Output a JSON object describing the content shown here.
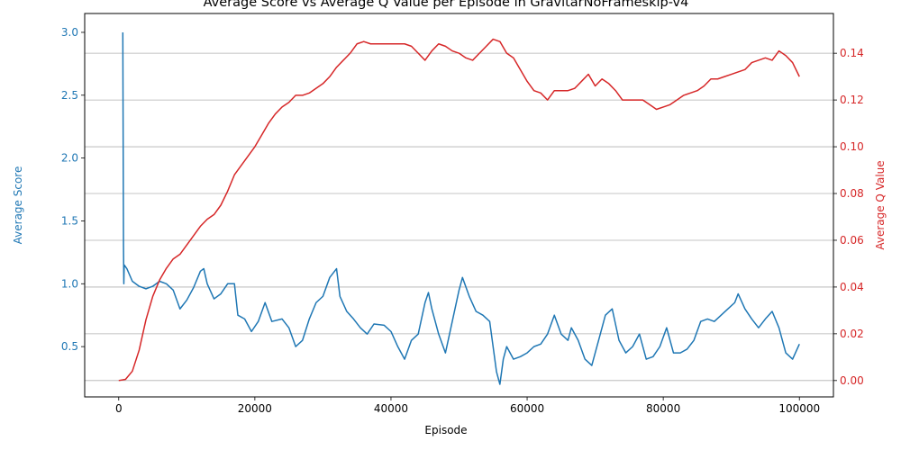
{
  "chart_data": {
    "type": "line",
    "title": "Average Score vs Average Q Value per Episode in GravitarNoFrameskip-v4",
    "xlabel": "Episode",
    "xlim": [
      -5000,
      105000
    ],
    "xticks": [
      0,
      20000,
      40000,
      60000,
      80000,
      100000
    ],
    "grid": "horizontal grid lines from right axis",
    "series": [
      {
        "name": "Average Score",
        "axis": "left",
        "ylabel": "Average Score",
        "color": "#1f77b4",
        "ylim": [
          0.1,
          3.15
        ],
        "yticks": [
          0.5,
          1.0,
          1.5,
          2.0,
          2.5,
          3.0
        ],
        "points": [
          [
            600,
            3.0
          ],
          [
            700,
            1.3
          ],
          [
            750,
            1.0
          ],
          [
            800,
            1.15
          ],
          [
            1200,
            1.12
          ],
          [
            2000,
            1.02
          ],
          [
            3000,
            0.98
          ],
          [
            4000,
            0.96
          ],
          [
            5000,
            0.98
          ],
          [
            6000,
            1.02
          ],
          [
            7000,
            1.0
          ],
          [
            8000,
            0.95
          ],
          [
            9000,
            0.8
          ],
          [
            10000,
            0.87
          ],
          [
            11000,
            0.97
          ],
          [
            12000,
            1.1
          ],
          [
            12500,
            1.12
          ],
          [
            13000,
            1.0
          ],
          [
            14000,
            0.88
          ],
          [
            15000,
            0.92
          ],
          [
            16000,
            1.0
          ],
          [
            17000,
            1.0
          ],
          [
            17500,
            0.75
          ],
          [
            18500,
            0.72
          ],
          [
            19500,
            0.62
          ],
          [
            20500,
            0.7
          ],
          [
            21500,
            0.85
          ],
          [
            22500,
            0.7
          ],
          [
            24000,
            0.72
          ],
          [
            25000,
            0.65
          ],
          [
            26000,
            0.5
          ],
          [
            27000,
            0.55
          ],
          [
            28000,
            0.72
          ],
          [
            29000,
            0.85
          ],
          [
            30000,
            0.9
          ],
          [
            31000,
            1.05
          ],
          [
            32000,
            1.12
          ],
          [
            32500,
            0.9
          ],
          [
            33500,
            0.78
          ],
          [
            34500,
            0.72
          ],
          [
            35500,
            0.65
          ],
          [
            36500,
            0.6
          ],
          [
            37500,
            0.68
          ],
          [
            39000,
            0.67
          ],
          [
            40000,
            0.62
          ],
          [
            41000,
            0.5
          ],
          [
            42000,
            0.4
          ],
          [
            43000,
            0.55
          ],
          [
            44000,
            0.6
          ],
          [
            45000,
            0.85
          ],
          [
            45500,
            0.93
          ],
          [
            46000,
            0.8
          ],
          [
            47000,
            0.6
          ],
          [
            48000,
            0.45
          ],
          [
            49000,
            0.7
          ],
          [
            50000,
            0.95
          ],
          [
            50500,
            1.05
          ],
          [
            51500,
            0.9
          ],
          [
            52500,
            0.78
          ],
          [
            53500,
            0.75
          ],
          [
            54500,
            0.7
          ],
          [
            55500,
            0.3
          ],
          [
            56000,
            0.2
          ],
          [
            56500,
            0.4
          ],
          [
            57000,
            0.5
          ],
          [
            58000,
            0.4
          ],
          [
            59000,
            0.42
          ],
          [
            60000,
            0.45
          ],
          [
            61000,
            0.5
          ],
          [
            62000,
            0.52
          ],
          [
            63000,
            0.6
          ],
          [
            64000,
            0.75
          ],
          [
            65000,
            0.6
          ],
          [
            66000,
            0.55
          ],
          [
            66500,
            0.65
          ],
          [
            67500,
            0.55
          ],
          [
            68500,
            0.4
          ],
          [
            69500,
            0.35
          ],
          [
            70500,
            0.55
          ],
          [
            71500,
            0.75
          ],
          [
            72500,
            0.8
          ],
          [
            73500,
            0.55
          ],
          [
            74500,
            0.45
          ],
          [
            75500,
            0.5
          ],
          [
            76500,
            0.6
          ],
          [
            77500,
            0.4
          ],
          [
            78500,
            0.42
          ],
          [
            79500,
            0.5
          ],
          [
            80500,
            0.65
          ],
          [
            81500,
            0.45
          ],
          [
            82500,
            0.45
          ],
          [
            83500,
            0.48
          ],
          [
            84500,
            0.55
          ],
          [
            85500,
            0.7
          ],
          [
            86500,
            0.72
          ],
          [
            87500,
            0.7
          ],
          [
            88500,
            0.75
          ],
          [
            89500,
            0.8
          ],
          [
            90500,
            0.85
          ],
          [
            91000,
            0.92
          ],
          [
            92000,
            0.8
          ],
          [
            93000,
            0.72
          ],
          [
            94000,
            0.65
          ],
          [
            95000,
            0.72
          ],
          [
            96000,
            0.78
          ],
          [
            97000,
            0.65
          ],
          [
            98000,
            0.45
          ],
          [
            99000,
            0.4
          ],
          [
            100000,
            0.52
          ]
        ]
      },
      {
        "name": "Average Q Value",
        "axis": "right",
        "ylabel": "Average Q Value",
        "color": "#d62728",
        "ylim": [
          -0.007,
          0.157
        ],
        "yticks": [
          0.0,
          0.02,
          0.04,
          0.06,
          0.08,
          0.1,
          0.12,
          0.14
        ],
        "points": [
          [
            0,
            0.0
          ],
          [
            1000,
            0.0005
          ],
          [
            2000,
            0.004
          ],
          [
            3000,
            0.013
          ],
          [
            4000,
            0.026
          ],
          [
            5000,
            0.036
          ],
          [
            6000,
            0.043
          ],
          [
            7000,
            0.048
          ],
          [
            8000,
            0.052
          ],
          [
            9000,
            0.054
          ],
          [
            10000,
            0.058
          ],
          [
            11000,
            0.062
          ],
          [
            12000,
            0.066
          ],
          [
            13000,
            0.069
          ],
          [
            14000,
            0.071
          ],
          [
            15000,
            0.075
          ],
          [
            16000,
            0.081
          ],
          [
            17000,
            0.088
          ],
          [
            18000,
            0.092
          ],
          [
            19000,
            0.096
          ],
          [
            20000,
            0.1
          ],
          [
            21000,
            0.105
          ],
          [
            22000,
            0.11
          ],
          [
            23000,
            0.114
          ],
          [
            24000,
            0.117
          ],
          [
            25000,
            0.119
          ],
          [
            26000,
            0.122
          ],
          [
            27000,
            0.122
          ],
          [
            28000,
            0.123
          ],
          [
            29000,
            0.125
          ],
          [
            30000,
            0.127
          ],
          [
            31000,
            0.13
          ],
          [
            32000,
            0.134
          ],
          [
            33000,
            0.137
          ],
          [
            34000,
            0.14
          ],
          [
            35000,
            0.144
          ],
          [
            36000,
            0.145
          ],
          [
            37000,
            0.144
          ],
          [
            38000,
            0.144
          ],
          [
            39000,
            0.144
          ],
          [
            40000,
            0.144
          ],
          [
            41000,
            0.144
          ],
          [
            42000,
            0.144
          ],
          [
            43000,
            0.143
          ],
          [
            44000,
            0.14
          ],
          [
            45000,
            0.137
          ],
          [
            46000,
            0.141
          ],
          [
            47000,
            0.144
          ],
          [
            48000,
            0.143
          ],
          [
            49000,
            0.141
          ],
          [
            50000,
            0.14
          ],
          [
            51000,
            0.138
          ],
          [
            52000,
            0.137
          ],
          [
            53000,
            0.14
          ],
          [
            54000,
            0.143
          ],
          [
            55000,
            0.146
          ],
          [
            56000,
            0.145
          ],
          [
            57000,
            0.14
          ],
          [
            58000,
            0.138
          ],
          [
            59000,
            0.133
          ],
          [
            60000,
            0.128
          ],
          [
            61000,
            0.124
          ],
          [
            62000,
            0.123
          ],
          [
            63000,
            0.12
          ],
          [
            64000,
            0.124
          ],
          [
            65000,
            0.124
          ],
          [
            66000,
            0.124
          ],
          [
            67000,
            0.125
          ],
          [
            68000,
            0.128
          ],
          [
            69000,
            0.131
          ],
          [
            70000,
            0.126
          ],
          [
            71000,
            0.129
          ],
          [
            72000,
            0.127
          ],
          [
            73000,
            0.124
          ],
          [
            74000,
            0.12
          ],
          [
            75000,
            0.12
          ],
          [
            76000,
            0.12
          ],
          [
            77000,
            0.12
          ],
          [
            78000,
            0.118
          ],
          [
            79000,
            0.116
          ],
          [
            80000,
            0.117
          ],
          [
            81000,
            0.118
          ],
          [
            82000,
            0.12
          ],
          [
            83000,
            0.122
          ],
          [
            84000,
            0.123
          ],
          [
            85000,
            0.124
          ],
          [
            86000,
            0.126
          ],
          [
            87000,
            0.129
          ],
          [
            88000,
            0.129
          ],
          [
            89000,
            0.13
          ],
          [
            90000,
            0.131
          ],
          [
            91000,
            0.132
          ],
          [
            92000,
            0.133
          ],
          [
            93000,
            0.136
          ],
          [
            94000,
            0.137
          ],
          [
            95000,
            0.138
          ],
          [
            96000,
            0.137
          ],
          [
            97000,
            0.141
          ],
          [
            98000,
            0.139
          ],
          [
            99000,
            0.136
          ],
          [
            100000,
            0.13
          ]
        ]
      }
    ]
  }
}
